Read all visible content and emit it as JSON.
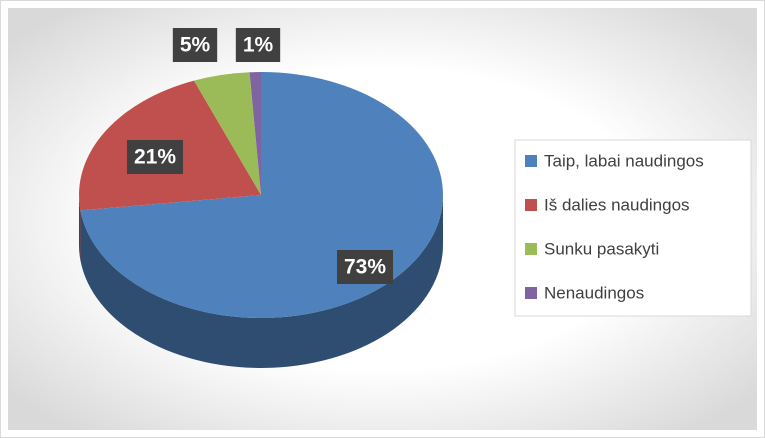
{
  "chart_data": {
    "type": "pie",
    "categories": [
      "Taip, labai naudingos",
      "Iš dalies naudingos",
      "Sunku pasakyti",
      "Nenaudingos"
    ],
    "values": [
      73,
      21,
      5,
      1
    ],
    "value_labels": [
      "73%",
      "21%",
      "5%",
      "1%"
    ],
    "colors": [
      "#4f81bd",
      "#c0504d",
      "#9bbb59",
      "#8064a2"
    ],
    "legend": "right"
  }
}
